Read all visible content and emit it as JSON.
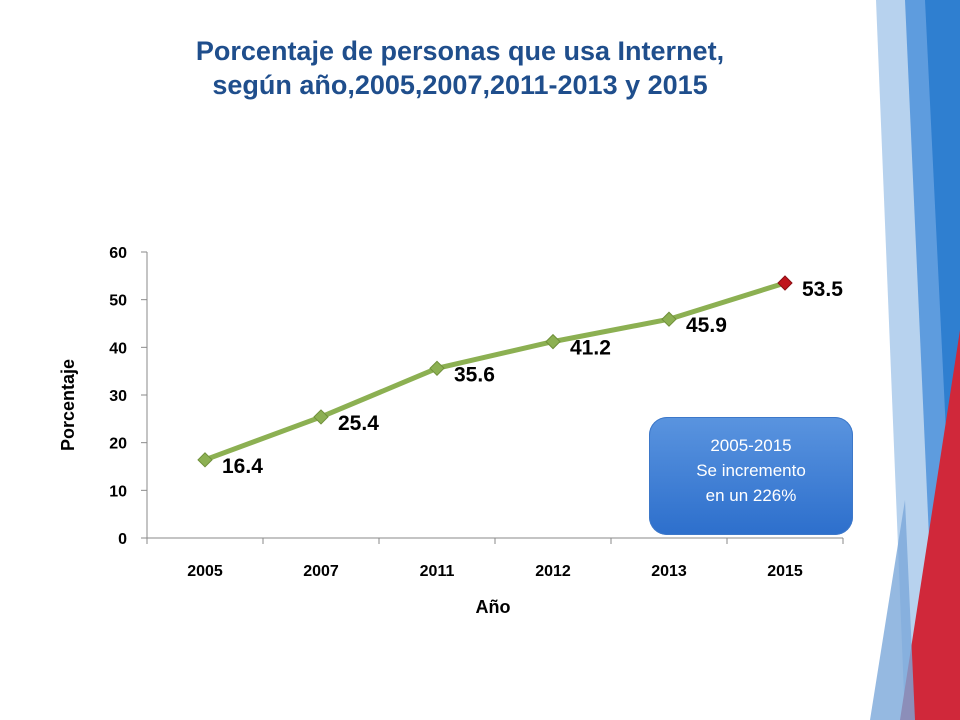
{
  "title": {
    "line1": "Porcentaje de personas que usa Internet,",
    "line2": "según año,2005,2007,2011-2013 y 2015"
  },
  "callout": {
    "line1": "2005-2015",
    "line2": "Se incremento",
    "line3": "en un 226%"
  },
  "colors": {
    "title": "#1f4e8c",
    "line": "#8cb052",
    "marker": "#8cb052",
    "last_marker": "#c0141c",
    "callout_fill": "#3f7fd6",
    "deco_blue": "#2f7fd0",
    "deco_red": "#d0283a"
  },
  "chart_data": {
    "type": "line",
    "title": "Porcentaje de personas que usa Internet, según año,2005,2007,2011-2013 y 2015",
    "xlabel": "Año",
    "ylabel": "Porcentaje",
    "categories": [
      "2005",
      "2007",
      "2011",
      "2012",
      "2013",
      "2015"
    ],
    "series": [
      {
        "values": [
          16.4,
          25.4,
          35.6,
          41.2,
          45.9,
          53.5
        ]
      }
    ],
    "data_labels": [
      "16.4",
      "25.4",
      "35.6",
      "41.2",
      "45.9",
      "53.5"
    ],
    "ylim": [
      0,
      60
    ],
    "yticks": [
      0,
      10,
      20,
      30,
      40,
      50,
      60
    ],
    "grid": false,
    "legend": "none"
  }
}
